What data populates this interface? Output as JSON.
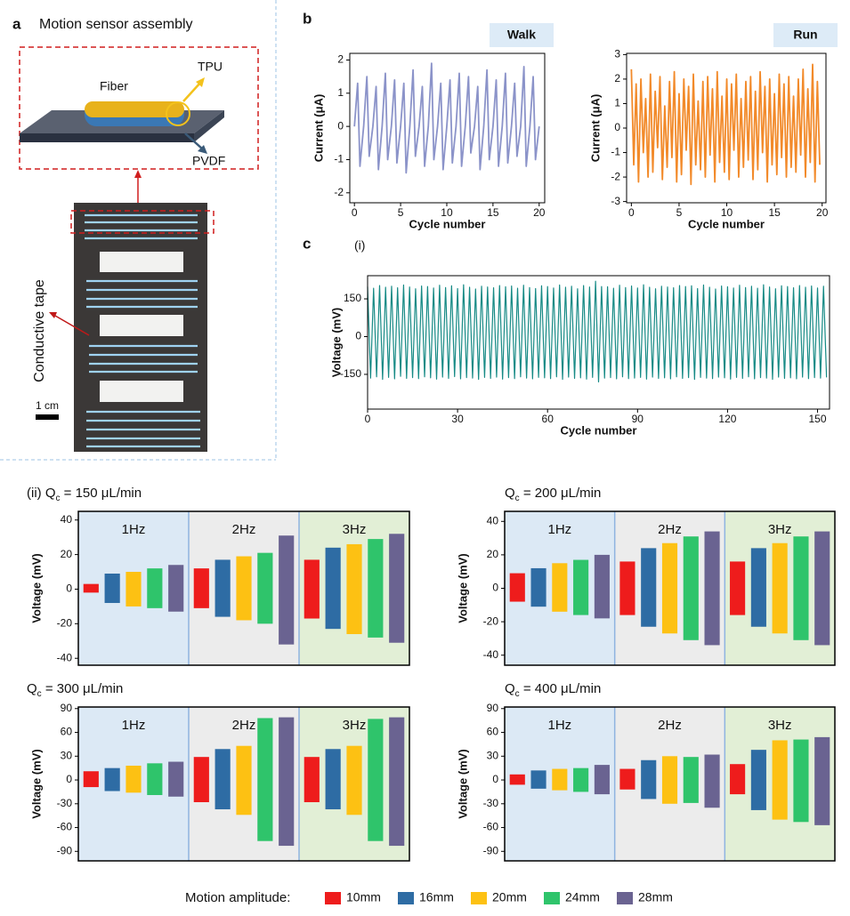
{
  "panel_a": {
    "label": "a",
    "title": "Motion sensor assembly",
    "fiber": "Fiber",
    "tpu": "TPU",
    "pvdf": "PVDF",
    "tape": "Conductive tape",
    "scale": "1 cm"
  },
  "labels": {
    "b": "b",
    "c": "c"
  },
  "legend": {
    "title": "Motion amplitude:",
    "items": [
      {
        "name": "10mm",
        "color": "#ee1c1c"
      },
      {
        "name": "16mm",
        "color": "#2e6ca4"
      },
      {
        "name": "20mm",
        "color": "#fdc113"
      },
      {
        "name": "24mm",
        "color": "#2fc46b"
      },
      {
        "name": "28mm",
        "color": "#6a6391"
      }
    ]
  },
  "chart_data": [
    {
      "type": "line",
      "title": "Walk",
      "xlabel": "Cycle number",
      "ylabel": "Current (μA)",
      "x": [
        0,
        0.35,
        0.6,
        1,
        1.35,
        1.6,
        2,
        2.35,
        2.6,
        3,
        3.35,
        3.6,
        4,
        4.35,
        4.6,
        5,
        5.35,
        5.6,
        6,
        6.35,
        6.6,
        7,
        7.35,
        7.6,
        8,
        8.35,
        8.6,
        9,
        9.35,
        9.6,
        10,
        10.35,
        10.6,
        11,
        11.35,
        11.6,
        12,
        12.35,
        12.6,
        13,
        13.35,
        13.6,
        14,
        14.35,
        14.6,
        15,
        15.35,
        15.6,
        16,
        16.35,
        16.6,
        17,
        17.35,
        17.6,
        18,
        18.35,
        18.6,
        19,
        19.35,
        19.6,
        20
      ],
      "series": [
        {
          "color": "#8b93c9",
          "values": [
            0,
            1.3,
            -1.2,
            0,
            1.5,
            -0.9,
            0,
            1.2,
            -1.3,
            0,
            1.6,
            -1.0,
            0,
            1.4,
            -1.1,
            0,
            1.3,
            -1.4,
            0,
            1.7,
            -0.9,
            0,
            1.2,
            -1.2,
            0,
            1.9,
            -1.0,
            0,
            1.3,
            -1.3,
            0,
            1.4,
            -1.1,
            0,
            1.6,
            -1.2,
            0,
            1.5,
            -0.8,
            0,
            1.2,
            -1.3,
            0,
            1.7,
            -1.0,
            0,
            1.4,
            -1.2,
            0,
            1.6,
            -1.1,
            0,
            1.3,
            -0.9,
            0,
            1.8,
            -1.2,
            0,
            1.5,
            -1.0,
            0
          ]
        }
      ],
      "xlim": [
        -0.5,
        20.6
      ],
      "ylim": [
        -2.3,
        2.2
      ],
      "xticks": [
        0,
        5,
        10,
        15,
        20
      ],
      "yticks": [
        -2,
        -1,
        0,
        1,
        2
      ]
    },
    {
      "type": "line",
      "title": "Run",
      "xlabel": "Cycle number",
      "ylabel": "Current (μA)",
      "x": [
        0,
        0.25,
        0.5,
        0.75,
        1,
        1.25,
        1.5,
        1.75,
        2,
        2.25,
        2.5,
        2.75,
        3,
        3.25,
        3.5,
        3.75,
        4,
        4.25,
        4.5,
        4.75,
        5,
        5.25,
        5.5,
        5.75,
        6,
        6.25,
        6.5,
        6.75,
        7,
        7.25,
        7.5,
        7.75,
        8,
        8.25,
        8.5,
        8.75,
        9,
        9.25,
        9.5,
        9.75,
        10,
        10.25,
        10.5,
        10.75,
        11,
        11.25,
        11.5,
        11.75,
        12,
        12.25,
        12.5,
        12.75,
        13,
        13.25,
        13.5,
        13.75,
        14,
        14.25,
        14.5,
        14.75,
        15,
        15.25,
        15.5,
        15.75,
        16,
        16.25,
        16.5,
        16.75,
        17,
        17.25,
        17.5,
        17.75,
        18,
        18.25,
        18.5,
        18.75,
        19,
        19.25,
        19.5,
        19.75
      ],
      "series": [
        {
          "color": "#f28a2a",
          "values": [
            2.4,
            -1.5,
            1.8,
            -2.2,
            2.0,
            -1.0,
            1.2,
            -2.0,
            2.2,
            -1.8,
            1.5,
            -0.8,
            2.1,
            -2.1,
            0.9,
            -1.6,
            1.9,
            -1.2,
            2.3,
            -2.2,
            1.4,
            -1.9,
            2.0,
            -0.9,
            1.7,
            -2.3,
            2.2,
            -1.5,
            1.1,
            -1.7,
            1.9,
            -2.0,
            2.1,
            -1.1,
            1.6,
            -2.2,
            2.3,
            -1.4,
            1.3,
            -1.8,
            2.0,
            -2.1,
            1.8,
            -0.9,
            2.2,
            -2.0,
            1.2,
            -1.6,
            1.9,
            -1.3,
            2.1,
            -2.1,
            1.5,
            -1.7,
            2.3,
            -1.0,
            1.7,
            -2.2,
            2.0,
            -1.5,
            1.4,
            -1.9,
            2.2,
            -1.2,
            1.8,
            -2.0,
            2.1,
            -1.6,
            1.3,
            -1.8,
            2.0,
            -1.1,
            2.4,
            -2.0,
            1.6,
            -1.4,
            2.6,
            -2.2,
            1.9,
            -1.5
          ]
        }
      ],
      "xlim": [
        -0.5,
        20.4
      ],
      "ylim": [
        -3.05,
        3.05
      ],
      "xticks": [
        0,
        5,
        10,
        15,
        20
      ],
      "yticks": [
        -3,
        -2,
        -1,
        0,
        1,
        2,
        3
      ]
    },
    {
      "type": "line",
      "title": "(i)",
      "xlabel": "Cycle number",
      "ylabel": "Voltage (mV)",
      "x": [
        0,
        1,
        2,
        3,
        4,
        5,
        6,
        7,
        8,
        9,
        10,
        11,
        12,
        13,
        14,
        15,
        16,
        17,
        18,
        19,
        20,
        21,
        22,
        23,
        24,
        25,
        26,
        27,
        28,
        29,
        30,
        31,
        32,
        33,
        34,
        35,
        36,
        37,
        38,
        39,
        40,
        41,
        42,
        43,
        44,
        45,
        46,
        47,
        48,
        49,
        50,
        51,
        52,
        53,
        54,
        55,
        56,
        57,
        58,
        59,
        60,
        61,
        62,
        63,
        64,
        65,
        66,
        67,
        68,
        69,
        70,
        71,
        72,
        73,
        74,
        75,
        76,
        77,
        78,
        79,
        80,
        81,
        82,
        83,
        84,
        85,
        86,
        87,
        88,
        89,
        90,
        91,
        92,
        93,
        94,
        95,
        96,
        97,
        98,
        99,
        100,
        101,
        102,
        103,
        104,
        105,
        106,
        107,
        108,
        109,
        110,
        111,
        112,
        113,
        114,
        115,
        116,
        117,
        118,
        119,
        120,
        121,
        122,
        123,
        124,
        125,
        126,
        127,
        128,
        129,
        130,
        131,
        132,
        133,
        134,
        135,
        136,
        137,
        138,
        139,
        140,
        141,
        142,
        143,
        144,
        145,
        146,
        147,
        148,
        149,
        150,
        151,
        152,
        153
      ],
      "series": [
        {
          "color": "#168a85",
          "values": [
            198,
            -165,
            192,
            -160,
            203,
            -170,
            196,
            -162,
            200,
            -168,
            194,
            -158,
            205,
            -166,
            197,
            -163,
            190,
            -167,
            201,
            -160,
            199,
            -164,
            193,
            -169,
            204,
            -161,
            195,
            -166,
            202,
            -159,
            191,
            -168,
            206,
            -163,
            196,
            -165,
            189,
            -170,
            200,
            -162,
            197,
            -166,
            194,
            -161,
            203,
            -169,
            198,
            -163,
            201,
            -167,
            192,
            -160,
            204,
            -165,
            195,
            -168,
            191,
            -162,
            202,
            -164,
            199,
            -167,
            193,
            -160,
            205,
            -170,
            196,
            -161,
            200,
            -166,
            190,
            -164,
            203,
            -169,
            197,
            -162,
            220,
            -180,
            199,
            -165,
            198,
            -163,
            192,
            -168,
            204,
            -160,
            195,
            -167,
            201,
            -165,
            193,
            -162,
            206,
            -169,
            196,
            -161,
            190,
            -166,
            200,
            -164,
            197,
            -168,
            194,
            -160,
            203,
            -166,
            199,
            -163,
            202,
            -170,
            191,
            -162,
            205,
            -165,
            196,
            -167,
            189,
            -161,
            201,
            -164,
            198,
            -169,
            193,
            -162,
            204,
            -166,
            195,
            -160,
            200,
            -168,
            192,
            -163,
            206,
            -165,
            197,
            -170,
            190,
            -161,
            202,
            -166,
            199,
            -164,
            194,
            -168,
            203,
            -161,
            196,
            -167,
            201,
            -163,
            193,
            -165,
            200,
            -162
          ]
        }
      ],
      "xlim": [
        0,
        154
      ],
      "ylim": [
        -288,
        242
      ],
      "xticks": [
        0,
        30,
        60,
        90,
        120,
        150
      ],
      "yticks": [
        -150,
        0,
        150
      ]
    },
    {
      "type": "range_bar",
      "title": {
        "prefix": "(ii) Q",
        "subscript": "c",
        "suffix": " = 150 μL/min"
      },
      "ylabel": "Voltage (mV)",
      "groups": [
        "1Hz",
        "2Hz",
        "3Hz"
      ],
      "group_colors": [
        "#dce9f5",
        "#ececec",
        "#e2efd6"
      ],
      "series": [
        {
          "high": [
            3,
            12,
            17
          ],
          "low": [
            -2,
            -11,
            -17
          ]
        },
        {
          "high": [
            9,
            17,
            24
          ],
          "low": [
            -8,
            -16,
            -23
          ]
        },
        {
          "high": [
            10,
            19,
            26
          ],
          "low": [
            -10,
            -18,
            -26
          ]
        },
        {
          "high": [
            12,
            21,
            29
          ],
          "low": [
            -11,
            -20,
            -28
          ]
        },
        {
          "high": [
            14,
            31,
            32
          ],
          "low": [
            -13,
            -32,
            -31
          ]
        }
      ],
      "ylim": [
        -44,
        45
      ],
      "yticks": [
        -40,
        -20,
        0,
        20,
        40
      ]
    },
    {
      "type": "range_bar",
      "title": {
        "prefix": "Q",
        "subscript": "c",
        "suffix": " = 200 μL/min"
      },
      "ylabel": "Voltage (mV)",
      "groups": [
        "1Hz",
        "2Hz",
        "3Hz"
      ],
      "group_colors": [
        "#dce9f5",
        "#ececec",
        "#e2efd6"
      ],
      "series": [
        {
          "high": [
            9,
            16,
            16
          ],
          "low": [
            -8,
            -16,
            -16
          ]
        },
        {
          "high": [
            12,
            24,
            24
          ],
          "low": [
            -11,
            -23,
            -23
          ]
        },
        {
          "high": [
            15,
            27,
            27
          ],
          "low": [
            -14,
            -27,
            -27
          ]
        },
        {
          "high": [
            17,
            31,
            31
          ],
          "low": [
            -16,
            -31,
            -31
          ]
        },
        {
          "high": [
            20,
            34,
            34
          ],
          "low": [
            -18,
            -34,
            -34
          ]
        }
      ],
      "ylim": [
        -46,
        46
      ],
      "yticks": [
        -40,
        -20,
        0,
        20,
        40
      ]
    },
    {
      "type": "range_bar",
      "title": {
        "prefix": "Q",
        "subscript": "c",
        "suffix": " = 300 μL/min"
      },
      "ylabel": "Voltage (mV)",
      "groups": [
        "1Hz",
        "2Hz",
        "3Hz"
      ],
      "group_colors": [
        "#dce9f5",
        "#ececec",
        "#e2efd6"
      ],
      "series": [
        {
          "high": [
            11,
            29,
            29
          ],
          "low": [
            -9,
            -28,
            -28
          ]
        },
        {
          "high": [
            15,
            39,
            39
          ],
          "low": [
            -14,
            -37,
            -37
          ]
        },
        {
          "high": [
            18,
            43,
            43
          ],
          "low": [
            -16,
            -44,
            -44
          ]
        },
        {
          "high": [
            21,
            78,
            77
          ],
          "low": [
            -19,
            -77,
            -77
          ]
        },
        {
          "high": [
            23,
            79,
            79
          ],
          "low": [
            -21,
            -83,
            -83
          ]
        }
      ],
      "ylim": [
        -102,
        92
      ],
      "yticks": [
        -90,
        -60,
        -30,
        0,
        30,
        60,
        90
      ]
    },
    {
      "type": "range_bar",
      "title": {
        "prefix": "Q",
        "subscript": "c",
        "suffix": " = 400 μL/min"
      },
      "ylabel": "Voltage (mV)",
      "groups": [
        "1Hz",
        "2Hz",
        "3Hz"
      ],
      "group_colors": [
        "#dce9f5",
        "#ececec",
        "#e2efd6"
      ],
      "series": [
        {
          "high": [
            7,
            14,
            20
          ],
          "low": [
            -6,
            -12,
            -18
          ]
        },
        {
          "high": [
            12,
            25,
            38
          ],
          "low": [
            -11,
            -24,
            -38
          ]
        },
        {
          "high": [
            14,
            30,
            50
          ],
          "low": [
            -13,
            -30,
            -50
          ]
        },
        {
          "high": [
            15,
            29,
            51
          ],
          "low": [
            -15,
            -29,
            -53
          ]
        },
        {
          "high": [
            19,
            32,
            54
          ],
          "low": [
            -18,
            -35,
            -57
          ]
        }
      ],
      "ylim": [
        -102,
        92
      ],
      "yticks": [
        -90,
        -60,
        -30,
        0,
        30,
        60,
        90
      ]
    }
  ]
}
